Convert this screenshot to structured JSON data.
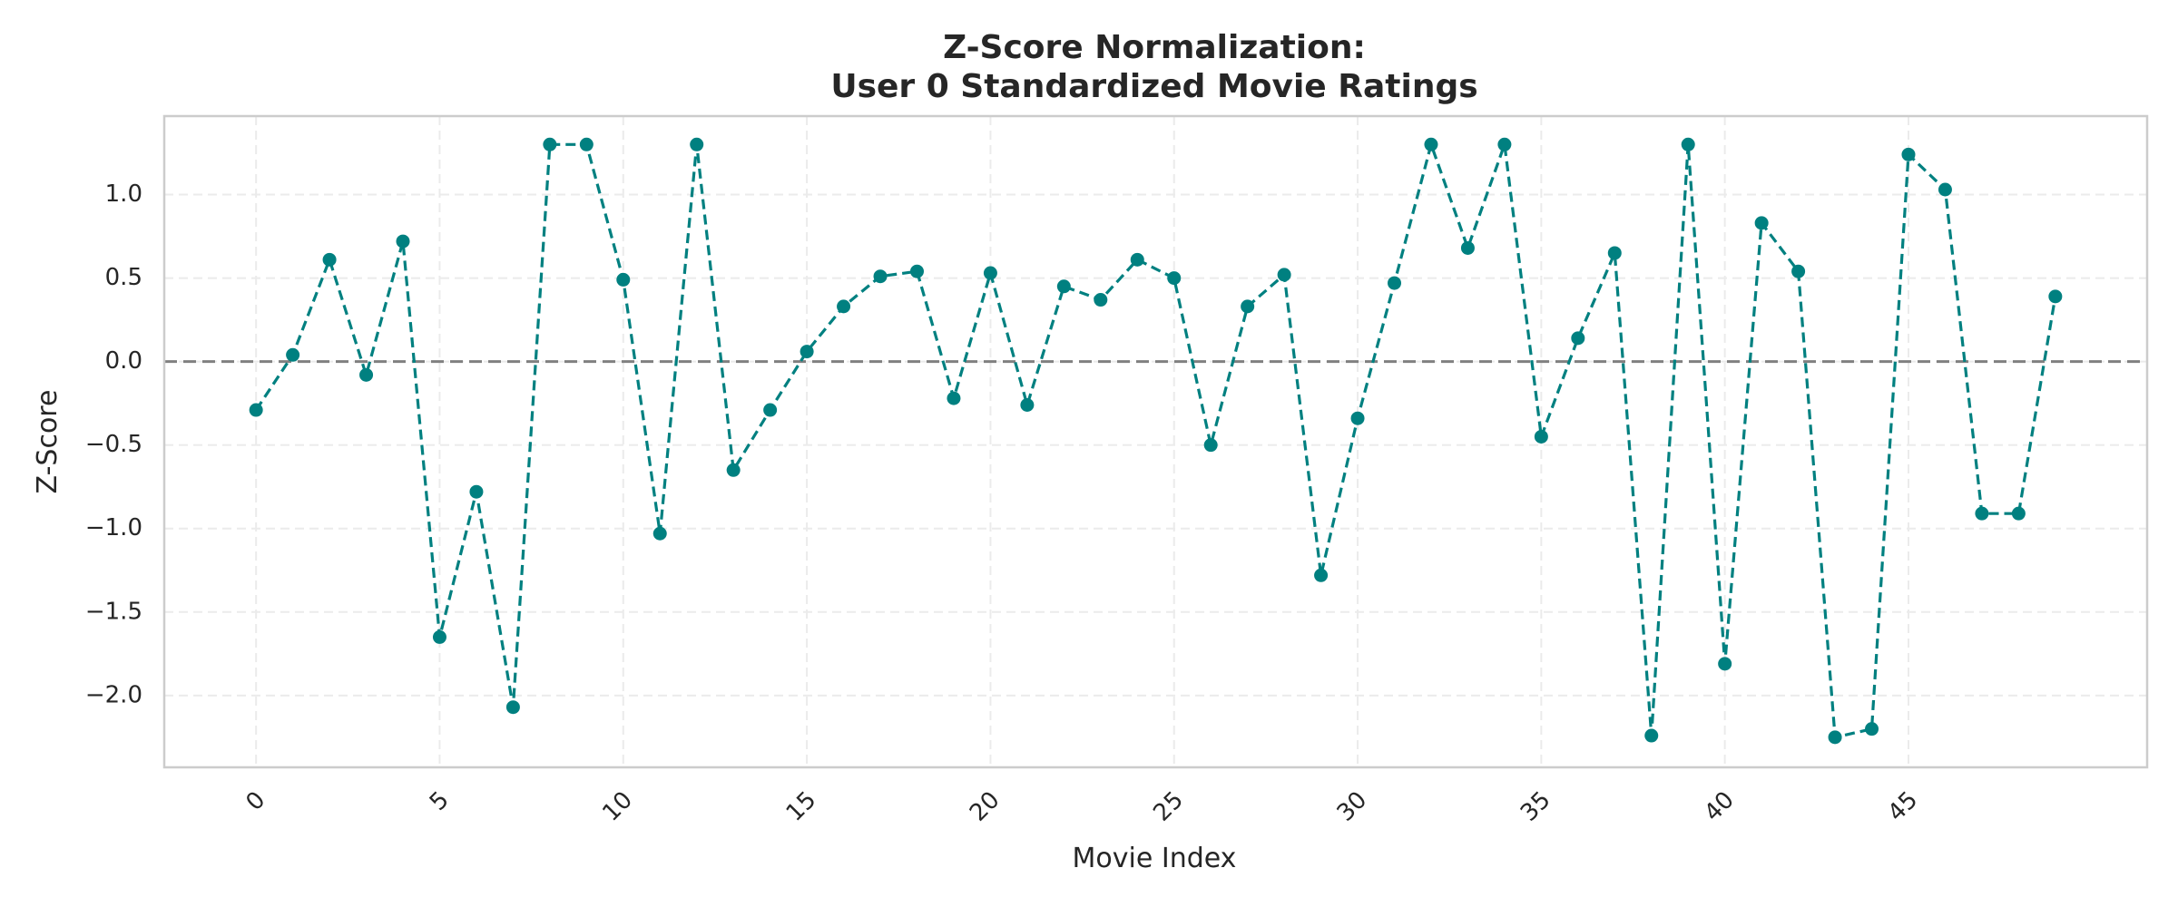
{
  "chart_data": {
    "type": "line",
    "title_lines": [
      "Z-Score Normalization:",
      "User 0 Standardized Movie Ratings"
    ],
    "xlabel": "Movie Index",
    "ylabel": "Z-Score",
    "xlim": [
      -2.5,
      51.5
    ],
    "ylim": [
      -2.43,
      1.47
    ],
    "x_ticks": [
      0,
      5,
      10,
      15,
      20,
      25,
      30,
      35,
      40,
      45
    ],
    "y_ticks": [
      1.0,
      0.5,
      0.0,
      -0.5,
      -1.0,
      -1.5,
      -2.0
    ],
    "y_tick_labels": [
      "1.0",
      "0.5",
      "0.0",
      "−0.5",
      "−1.0",
      "−1.5",
      "−2.0"
    ],
    "grid": true,
    "reference_line": {
      "y": 0.0,
      "color": "#808080",
      "style": "dashed"
    },
    "series": [
      {
        "color": "#008080",
        "line_style": "dashed",
        "marker": "circle",
        "x": [
          0,
          1,
          2,
          3,
          4,
          5,
          6,
          7,
          8,
          9,
          10,
          11,
          12,
          13,
          14,
          15,
          16,
          17,
          18,
          19,
          20,
          21,
          22,
          23,
          24,
          25,
          26,
          27,
          28,
          29,
          30,
          31,
          32,
          33,
          34,
          35,
          36,
          37,
          38,
          39,
          40,
          41,
          42,
          43,
          44,
          45,
          46,
          47,
          48,
          49
        ],
        "values": [
          -0.29,
          0.04,
          0.61,
          -0.08,
          0.72,
          -1.65,
          -0.78,
          -2.07,
          1.3,
          1.3,
          0.49,
          -1.03,
          1.3,
          -0.65,
          -0.29,
          0.06,
          0.33,
          0.51,
          0.54,
          -0.22,
          0.53,
          -0.26,
          0.45,
          0.37,
          0.61,
          0.5,
          -0.5,
          0.33,
          0.52,
          -1.28,
          -0.34,
          0.47,
          1.3,
          0.68,
          1.3,
          -0.45,
          0.14,
          0.65,
          -2.24,
          1.3,
          -1.81,
          0.83,
          0.54,
          -2.25,
          -2.2,
          1.24,
          1.03,
          -0.91,
          -0.91,
          0.39
        ]
      }
    ]
  }
}
